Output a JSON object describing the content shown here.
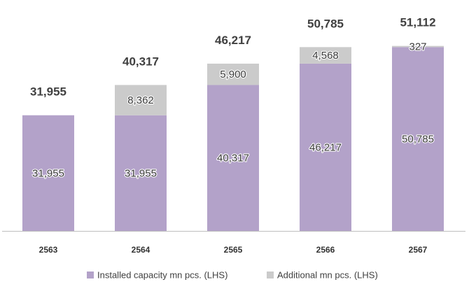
{
  "chart_data": {
    "type": "bar",
    "stacked": true,
    "categories": [
      "2563",
      "2564",
      "2565",
      "2566",
      "2567"
    ],
    "series": [
      {
        "name": "Installed capacity mn pcs. (LHS)",
        "values": [
          31955,
          31955,
          40317,
          46217,
          50785
        ],
        "labels": [
          "31,955",
          "31,955",
          "40,317",
          "46,217",
          "50,785"
        ],
        "color": "#b3a2c9"
      },
      {
        "name": "Additional mn pcs. (LHS)",
        "values": [
          null,
          8362,
          5900,
          4568,
          327
        ],
        "labels": [
          "",
          "8,362",
          "5,900",
          "4,568",
          "327"
        ],
        "color": "#cbcbcb"
      }
    ],
    "totals": [
      31955,
      40317,
      46217,
      50785,
      51112
    ],
    "total_labels": [
      "31,955",
      "40,317",
      "46,217",
      "50,785",
      "51,112"
    ],
    "ylim": [
      0,
      58000
    ],
    "grid": false,
    "legend_position": "bottom",
    "axis_color": "#bfbfbf"
  }
}
